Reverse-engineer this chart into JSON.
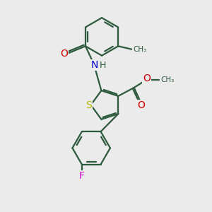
{
  "background_color": "#ebebeb",
  "bond_color": "#2d5a3d",
  "sulfur_color": "#b8b800",
  "nitrogen_color": "#0000cc",
  "oxygen_color": "#cc0000",
  "fluorine_color": "#cc00cc",
  "line_width": 1.6,
  "figsize": [
    3.0,
    3.0
  ],
  "dpi": 100,
  "xlim": [
    0,
    10
  ],
  "ylim": [
    0,
    10
  ]
}
